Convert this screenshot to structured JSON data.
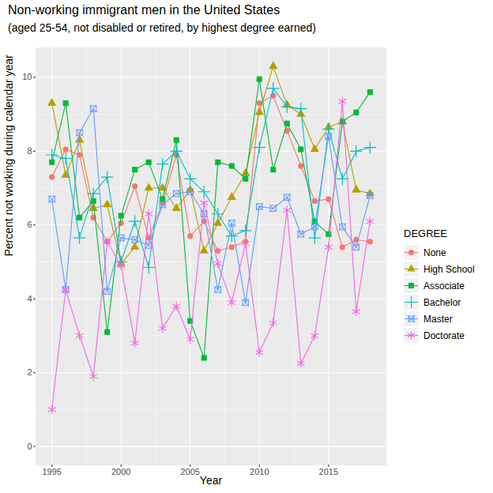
{
  "chart_data": {
    "type": "line",
    "title": "Non-working immigrant men in the United States",
    "subtitle": "(aged 25-54, not disabled or retired, by highest degree earned)",
    "x_label": "Year",
    "y_label": "Percent not working during calendar year",
    "legend_title": "DEGREE",
    "legend": "right",
    "grid": true,
    "x": [
      1995,
      1996,
      1997,
      1998,
      1999,
      2000,
      2001,
      2002,
      2003,
      2004,
      2005,
      2006,
      2007,
      2008,
      2009,
      2010,
      2011,
      2012,
      2013,
      2014,
      2015,
      2016,
      2017,
      2018
    ],
    "xlim": [
      1993.85,
      2019.15
    ],
    "xticks": [
      1995,
      2000,
      2005,
      2010,
      2015
    ],
    "ylim": [
      -0.5,
      10.8
    ],
    "yticks": [
      0,
      2,
      4,
      6,
      8,
      10
    ],
    "series": [
      {
        "name": "None",
        "color": "#F8766D",
        "marker": "circle",
        "values": [
          7.3,
          8.05,
          7.9,
          6.2,
          5.55,
          6.05,
          7.05,
          5.65,
          6.6,
          7.9,
          5.7,
          6.1,
          5.3,
          5.4,
          5.55,
          9.3,
          9.5,
          8.55,
          7.6,
          6.65,
          6.7,
          5.4,
          5.6,
          5.55
        ]
      },
      {
        "name": "High School",
        "color": "#B79F00",
        "marker": "triangle",
        "values": [
          9.3,
          7.35,
          8.3,
          6.45,
          6.55,
          4.95,
          5.4,
          7.0,
          7.0,
          6.45,
          6.95,
          5.3,
          6.05,
          6.75,
          7.4,
          9.05,
          10.3,
          9.25,
          9.0,
          8.05,
          8.65,
          8.8,
          6.95,
          6.85
        ]
      },
      {
        "name": "Associate",
        "color": "#00BA38",
        "marker": "square",
        "values": [
          7.7,
          9.3,
          6.2,
          6.65,
          3.1,
          6.25,
          7.5,
          7.7,
          6.7,
          8.3,
          3.4,
          2.4,
          7.7,
          7.6,
          7.25,
          9.95,
          7.5,
          8.75,
          8.05,
          6.1,
          5.75,
          8.8,
          9.05,
          9.6
        ]
      },
      {
        "name": "Bachelor",
        "color": "#00BFC4",
        "marker": "plus",
        "values": [
          7.9,
          7.8,
          5.65,
          6.85,
          7.3,
          5.0,
          6.1,
          4.85,
          7.65,
          8.0,
          7.25,
          6.9,
          6.3,
          5.7,
          5.85,
          8.1,
          9.7,
          9.2,
          9.15,
          5.65,
          8.6,
          7.25,
          8.0,
          8.1
        ]
      },
      {
        "name": "Master",
        "color": "#619CFF",
        "marker": "square-cross",
        "values": [
          6.7,
          4.25,
          8.5,
          9.15,
          4.2,
          5.65,
          5.6,
          5.45,
          6.55,
          6.85,
          6.9,
          6.3,
          4.25,
          6.05,
          3.9,
          6.5,
          6.45,
          6.75,
          5.75,
          5.95,
          8.4,
          5.95,
          5.4,
          6.8
        ]
      },
      {
        "name": "Doctorate",
        "color": "#F564E3",
        "marker": "asterisk",
        "values": [
          1.0,
          4.25,
          3.0,
          1.9,
          5.55,
          4.9,
          2.8,
          6.3,
          3.2,
          3.8,
          2.9,
          6.6,
          4.95,
          3.9,
          5.5,
          2.55,
          3.35,
          6.4,
          2.25,
          3.0,
          5.4,
          9.35,
          3.65,
          6.1
        ]
      }
    ]
  }
}
